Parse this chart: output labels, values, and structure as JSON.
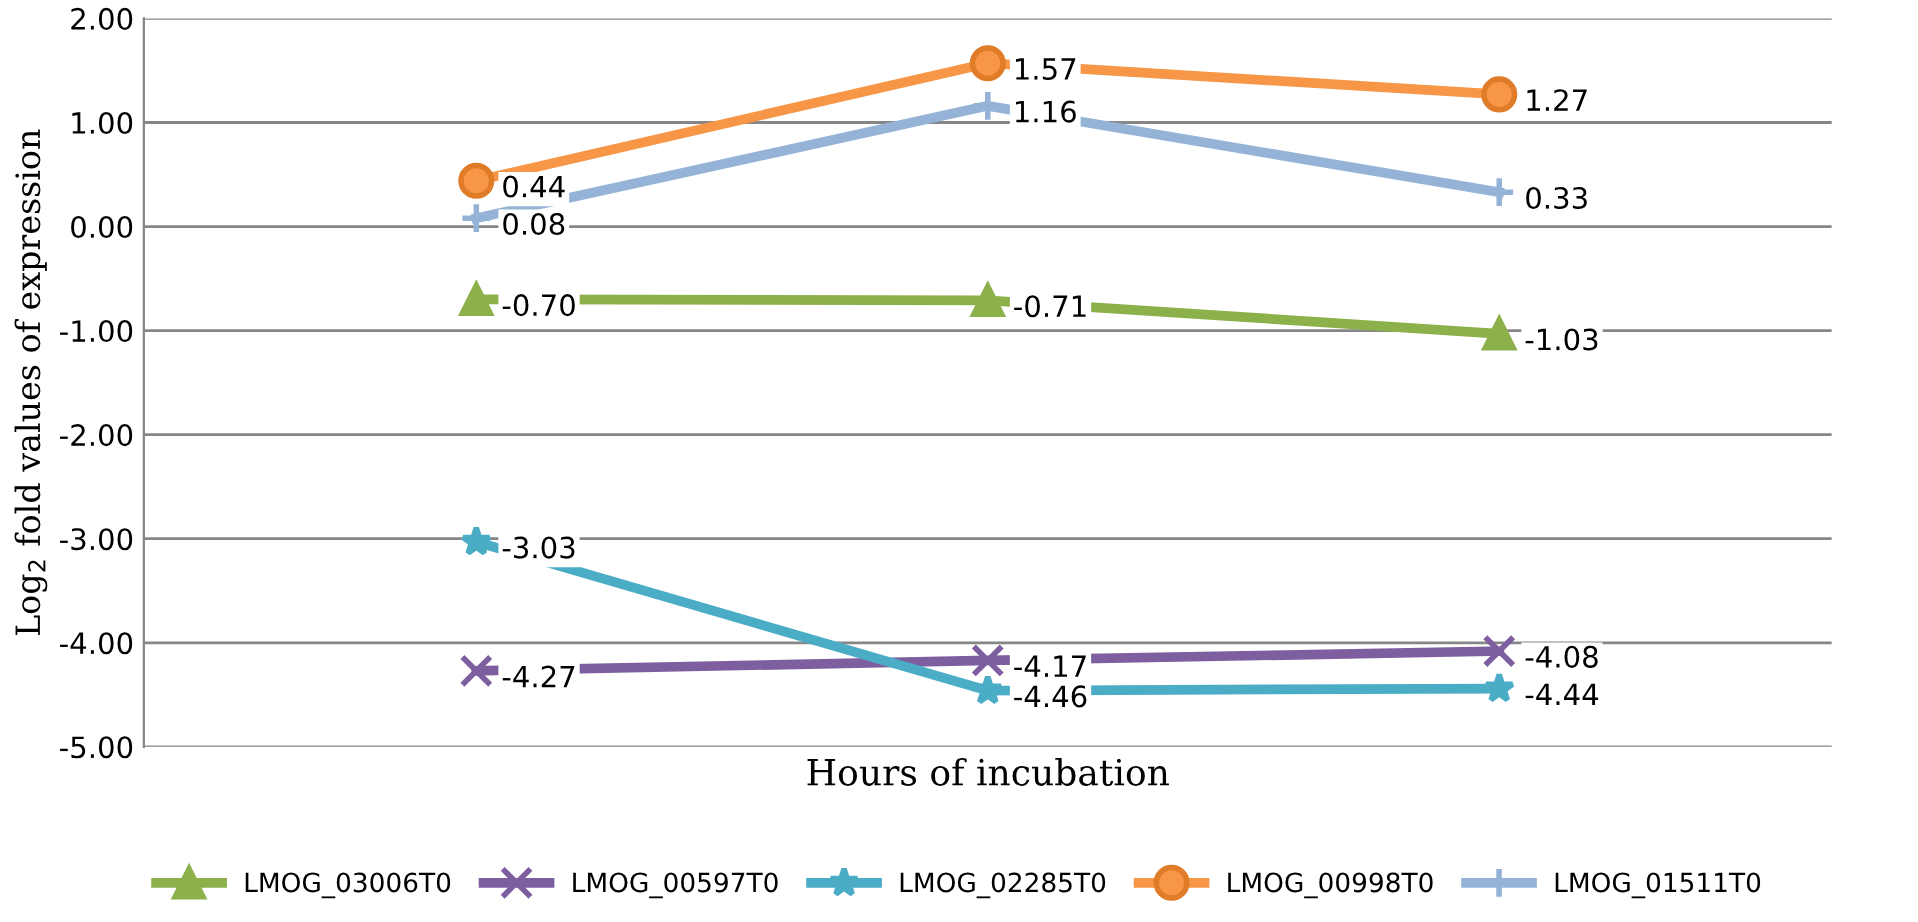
{
  "chart_data": {
    "type": "line",
    "xlabel": "Hours of incubation",
    "ylabel": "Log$_{2}$ fold values of expression",
    "categories": [
      null,
      null,
      null
    ],
    "series": [
      {
        "name": "LMOG_03006T0",
        "color": "#8cb04a",
        "marker": "triangle",
        "values": [
          -0.7,
          -0.71,
          -1.03
        ],
        "value_labels": [
          "-0.70",
          "-0.71",
          "-1.03"
        ]
      },
      {
        "name": "LMOG_00597T0",
        "color": "#7d5fa0",
        "marker": "cross",
        "values": [
          -4.27,
          -4.17,
          -4.08
        ],
        "value_labels": [
          "-4.27",
          "-4.17",
          "-4.08"
        ]
      },
      {
        "name": "LMOG_02285T0",
        "color": "#4bacc6",
        "marker": "star",
        "values": [
          -3.03,
          -4.46,
          -4.44
        ],
        "value_labels": [
          "-3.03",
          "-4.46",
          "-4.44"
        ]
      },
      {
        "name": "LMOG_00998T0",
        "color": "#f79646",
        "marker": "circle",
        "values": [
          0.44,
          1.57,
          1.27
        ],
        "value_labels": [
          "0.44",
          "1.57",
          "1.27"
        ]
      },
      {
        "name": "LMOG_01511T0",
        "color": "#95b3d7",
        "marker": "plus",
        "values": [
          0.08,
          1.16,
          0.33
        ],
        "value_labels": [
          "0.08",
          "1.16",
          "0.33"
        ]
      }
    ],
    "ylim": [
      -5,
      2
    ],
    "yticks": [
      {
        "value": -5,
        "label": "-5.00"
      },
      {
        "value": -4,
        "label": "-4.00"
      },
      {
        "value": -3,
        "label": "-3.00"
      },
      {
        "value": -2,
        "label": "-2.00"
      },
      {
        "value": -1,
        "label": "-1.00"
      },
      {
        "value": 0,
        "label": "0.00"
      },
      {
        "value": 1,
        "label": "1.00"
      },
      {
        "value": 2,
        "label": "2.00"
      }
    ],
    "grid": "y",
    "legend": "bottom",
    "tick_labels": "y",
    "line_style": "solid"
  }
}
